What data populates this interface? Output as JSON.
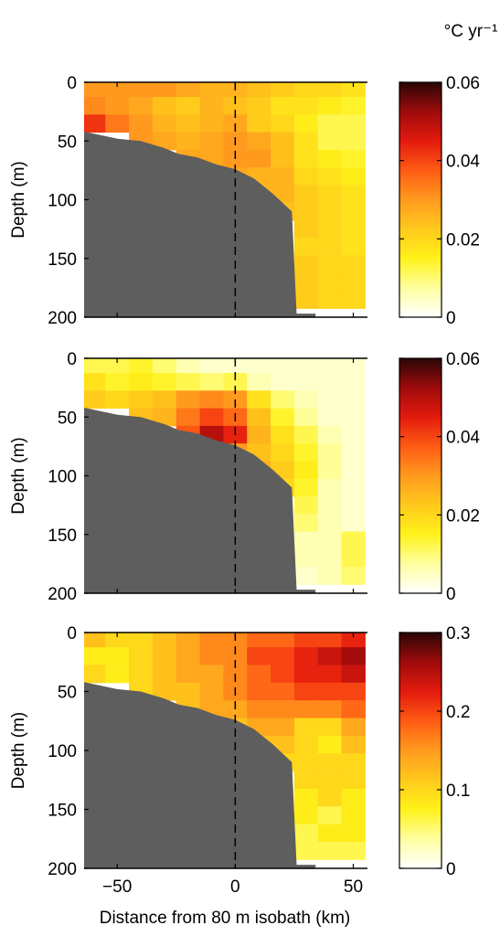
{
  "figure": {
    "units_label": "°C yr⁻¹",
    "xlabel": "Distance from 80 m isobath (km)",
    "ylabel": "Depth (m)",
    "colormap": [
      "#ffffff",
      "#ffffa0",
      "#fff21a",
      "#ffc91c",
      "#ff9a1e",
      "#ff5b14",
      "#e31a0e",
      "#9e0b0b",
      "#2a0606"
    ]
  },
  "chart_data": [
    {
      "type": "heatmap",
      "panel": "top",
      "xlabel": "",
      "ylabel": "Depth (m)",
      "xlim": [
        -64,
        56
      ],
      "ylim": [
        200,
        0
      ],
      "x_ticks": [
        -50,
        0,
        50
      ],
      "x_tick_labels": [
        "",
        "",
        ""
      ],
      "y_ticks": [
        0,
        50,
        100,
        150,
        200
      ],
      "y_tick_labels": [
        "0",
        "50",
        "100",
        "150",
        "200"
      ],
      "colorbar": {
        "min": 0,
        "max": 0.06,
        "ticks": [
          0,
          0.02,
          0.04,
          0.06
        ],
        "tick_labels": [
          "0",
          "0.02",
          "0.04",
          "0.06"
        ]
      },
      "reference_line_x": 0,
      "x": [
        -60,
        -50,
        -40,
        -30,
        -20,
        -10,
        0,
        10,
        20,
        30,
        40,
        50
      ],
      "depth": [
        5,
        20,
        35,
        50,
        65,
        80,
        95,
        110,
        125,
        140,
        155,
        170,
        185
      ],
      "values": [
        [
          0.03,
          0.03,
          0.03,
          0.03,
          0.028,
          0.026,
          0.026,
          0.024,
          0.022,
          0.02,
          0.02,
          0.018
        ],
        [
          0.032,
          0.03,
          0.028,
          0.024,
          0.022,
          0.026,
          0.024,
          0.022,
          0.018,
          0.018,
          0.016,
          0.014
        ],
        [
          0.042,
          0.034,
          0.03,
          0.026,
          0.024,
          0.026,
          0.028,
          0.022,
          0.02,
          0.016,
          0.012,
          0.012
        ],
        [
          null,
          null,
          0.03,
          0.028,
          0.026,
          0.028,
          0.03,
          0.028,
          0.024,
          0.018,
          0.012,
          0.012
        ],
        [
          null,
          null,
          null,
          null,
          0.028,
          0.028,
          0.03,
          0.03,
          0.024,
          0.018,
          0.016,
          0.014
        ],
        [
          null,
          null,
          null,
          null,
          null,
          null,
          0.028,
          0.026,
          0.026,
          0.02,
          0.018,
          0.016
        ],
        [
          null,
          null,
          null,
          null,
          null,
          null,
          null,
          0.026,
          0.026,
          0.022,
          0.02,
          0.018
        ],
        [
          null,
          null,
          null,
          null,
          null,
          null,
          null,
          null,
          0.024,
          0.022,
          0.02,
          0.018
        ],
        [
          null,
          null,
          null,
          null,
          null,
          null,
          null,
          null,
          null,
          0.022,
          0.02,
          0.018
        ],
        [
          null,
          null,
          null,
          null,
          null,
          null,
          null,
          null,
          null,
          0.02,
          0.02,
          0.018
        ],
        [
          null,
          null,
          null,
          null,
          null,
          null,
          null,
          null,
          null,
          0.022,
          0.02,
          0.02
        ],
        [
          null,
          null,
          null,
          null,
          null,
          null,
          null,
          null,
          null,
          0.022,
          0.02,
          0.02
        ],
        [
          null,
          null,
          null,
          null,
          null,
          null,
          null,
          null,
          null,
          0.022,
          0.02,
          0.02
        ]
      ]
    },
    {
      "type": "heatmap",
      "panel": "middle",
      "xlabel": "",
      "ylabel": "Depth (m)",
      "xlim": [
        -64,
        56
      ],
      "ylim": [
        200,
        0
      ],
      "x_ticks": [
        -50,
        0,
        50
      ],
      "x_tick_labels": [
        "",
        "",
        ""
      ],
      "y_ticks": [
        0,
        50,
        100,
        150,
        200
      ],
      "y_tick_labels": [
        "0",
        "50",
        "100",
        "150",
        "200"
      ],
      "colorbar": {
        "min": 0,
        "max": 0.06,
        "ticks": [
          0,
          0.02,
          0.04,
          0.06
        ],
        "tick_labels": [
          "0",
          "0.02",
          "0.04",
          "0.06"
        ]
      },
      "reference_line_x": 0,
      "x": [
        -60,
        -50,
        -40,
        -30,
        -20,
        -10,
        0,
        10,
        20,
        30,
        40,
        50
      ],
      "depth": [
        5,
        20,
        35,
        50,
        65,
        80,
        95,
        110,
        125,
        140,
        155,
        170,
        185
      ],
      "values": [
        [
          0.012,
          0.012,
          0.014,
          0.01,
          0.006,
          0.004,
          0.004,
          0.004,
          0.004,
          0.004,
          0.004,
          0.004
        ],
        [
          0.018,
          0.014,
          0.016,
          0.014,
          0.012,
          0.01,
          0.012,
          0.006,
          0.004,
          0.004,
          0.004,
          0.004
        ],
        [
          0.022,
          0.02,
          0.022,
          0.024,
          0.03,
          0.032,
          0.03,
          0.018,
          0.01,
          0.006,
          0.004,
          0.004
        ],
        [
          null,
          null,
          0.024,
          0.026,
          0.034,
          0.04,
          0.036,
          0.024,
          0.014,
          0.008,
          0.004,
          0.004
        ],
        [
          null,
          null,
          null,
          null,
          0.038,
          0.05,
          0.044,
          0.026,
          0.018,
          0.012,
          0.006,
          0.004
        ],
        [
          null,
          null,
          null,
          null,
          null,
          null,
          0.03,
          0.024,
          0.02,
          0.014,
          0.008,
          0.004
        ],
        [
          null,
          null,
          null,
          null,
          null,
          null,
          null,
          0.026,
          0.022,
          0.016,
          0.008,
          0.004
        ],
        [
          null,
          null,
          null,
          null,
          null,
          null,
          null,
          null,
          0.02,
          0.014,
          0.006,
          0.004
        ],
        [
          null,
          null,
          null,
          null,
          null,
          null,
          null,
          null,
          null,
          0.012,
          0.006,
          0.004
        ],
        [
          null,
          null,
          null,
          null,
          null,
          null,
          null,
          null,
          null,
          0.01,
          0.006,
          0.004
        ],
        [
          null,
          null,
          null,
          null,
          null,
          null,
          null,
          null,
          null,
          0.006,
          0.006,
          0.012
        ],
        [
          null,
          null,
          null,
          null,
          null,
          null,
          null,
          null,
          null,
          0.006,
          0.006,
          0.012
        ],
        [
          null,
          null,
          null,
          null,
          null,
          null,
          null,
          null,
          null,
          0.004,
          0.006,
          0.01
        ]
      ]
    },
    {
      "type": "heatmap",
      "panel": "bottom",
      "xlabel": "Distance from 80 m isobath (km)",
      "ylabel": "Depth (m)",
      "xlim": [
        -64,
        56
      ],
      "ylim": [
        200,
        0
      ],
      "x_ticks": [
        -50,
        0,
        50
      ],
      "x_tick_labels": [
        "−50",
        "0",
        "50"
      ],
      "y_ticks": [
        0,
        50,
        100,
        150,
        200
      ],
      "y_tick_labels": [
        "0",
        "50",
        "100",
        "150",
        "200"
      ],
      "colorbar": {
        "min": 0,
        "max": 0.3,
        "ticks": [
          0,
          0.1,
          0.2,
          0.3
        ],
        "tick_labels": [
          "0",
          "0.1",
          "0.2",
          "0.3"
        ]
      },
      "reference_line_x": 0,
      "x": [
        -60,
        -50,
        -40,
        -30,
        -20,
        -10,
        0,
        10,
        20,
        30,
        40,
        50
      ],
      "depth": [
        5,
        20,
        35,
        50,
        65,
        80,
        95,
        110,
        125,
        140,
        155,
        170,
        185
      ],
      "values": [
        [
          0.12,
          0.1,
          0.1,
          0.12,
          0.14,
          0.16,
          0.16,
          0.18,
          0.18,
          0.2,
          0.2,
          0.22
        ],
        [
          0.08,
          0.08,
          0.1,
          0.12,
          0.14,
          0.16,
          0.16,
          0.2,
          0.2,
          0.22,
          0.24,
          0.26
        ],
        [
          0.1,
          0.08,
          0.1,
          0.12,
          0.14,
          0.14,
          0.16,
          0.18,
          0.2,
          0.22,
          0.22,
          0.24
        ],
        [
          null,
          null,
          0.1,
          0.12,
          0.12,
          0.14,
          0.16,
          0.18,
          0.18,
          0.2,
          0.2,
          0.2
        ],
        [
          null,
          null,
          null,
          null,
          0.12,
          0.14,
          0.14,
          0.16,
          0.16,
          0.16,
          0.16,
          0.18
        ],
        [
          null,
          null,
          null,
          null,
          null,
          null,
          0.12,
          0.14,
          0.14,
          0.1,
          0.1,
          0.14
        ],
        [
          null,
          null,
          null,
          null,
          null,
          null,
          null,
          0.12,
          0.12,
          0.1,
          0.08,
          0.12
        ],
        [
          null,
          null,
          null,
          null,
          null,
          null,
          null,
          null,
          0.1,
          0.1,
          0.1,
          0.1
        ],
        [
          null,
          null,
          null,
          null,
          null,
          null,
          null,
          null,
          null,
          0.1,
          0.1,
          0.1
        ],
        [
          null,
          null,
          null,
          null,
          null,
          null,
          null,
          null,
          null,
          0.08,
          0.1,
          0.08
        ],
        [
          null,
          null,
          null,
          null,
          null,
          null,
          null,
          null,
          null,
          0.08,
          0.06,
          0.08
        ],
        [
          null,
          null,
          null,
          null,
          null,
          null,
          null,
          null,
          null,
          0.06,
          0.08,
          0.08
        ],
        [
          null,
          null,
          null,
          null,
          null,
          null,
          null,
          null,
          null,
          0.06,
          0.06,
          0.06
        ]
      ]
    }
  ]
}
